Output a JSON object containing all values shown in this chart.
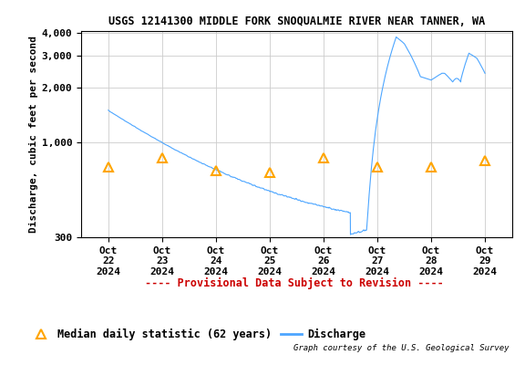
{
  "title": "USGS 12141300 MIDDLE FORK SNOQUALMIE RIVER NEAR TANNER, WA",
  "ylabel": "Discharge, cubic feet per second",
  "discharge_color": "#4da6ff",
  "median_color": "#ffa500",
  "provisional_color": "#cc0000",
  "background_color": "#ffffff",
  "grid_color": "#cccccc",
  "title_fontsize": 8.5,
  "axis_label_fontsize": 8,
  "tick_fontsize": 8,
  "legend_fontsize": 8.5,
  "provisional_text": "---- Provisional Data Subject to Revision ----",
  "courtesy_text": "Graph courtesy of the U.S. Geological Survey",
  "median_label": "Median daily statistic (62 years)",
  "discharge_label": "Discharge",
  "yticks": [
    300,
    1000,
    2000,
    3000,
    4000
  ],
  "ylim": [
    300,
    4100
  ],
  "median_x": [
    0,
    1,
    2,
    3,
    4,
    5,
    6,
    7
  ],
  "median_y": [
    730,
    820,
    700,
    680,
    820,
    730,
    730,
    790
  ]
}
